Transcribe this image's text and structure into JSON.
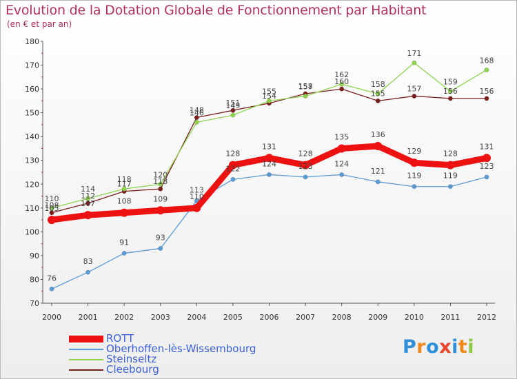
{
  "title": "Evolution de la Dotation Globale de Fonctionnement par Habitant",
  "subtitle": "(en € et par an)",
  "logo": {
    "text": "Proxiti",
    "colors": [
      "#2f8fd8",
      "#f08a1c",
      "#2f8fd8",
      "#e8452b",
      "#2f8fd8",
      "#f08a1c",
      "#8dc63f"
    ]
  },
  "chart_data": {
    "type": "line",
    "title": "Evolution de la Dotation Globale de Fonctionnement par Habitant",
    "ylabel": "(en € et par an)",
    "xlabel": "",
    "ylim": [
      70,
      180
    ],
    "yticks": [
      70,
      80,
      90,
      100,
      110,
      120,
      130,
      140,
      150,
      160,
      170,
      180
    ],
    "x": [
      2000,
      2001,
      2002,
      2003,
      2004,
      2005,
      2006,
      2007,
      2008,
      2009,
      2010,
      2011,
      2012
    ],
    "grid": false,
    "legend_position": "bottom-left",
    "series": [
      {
        "name": "ROTT",
        "color": "#ee1111",
        "values": [
          105,
          107,
          108,
          109,
          110,
          128,
          131,
          128,
          135,
          136,
          129,
          128,
          131
        ]
      },
      {
        "name": "Oberhoffen-lès-Wissembourg",
        "color": "#5b9bd5",
        "values": [
          76,
          83,
          91,
          93,
          113,
          122,
          124,
          123,
          124,
          121,
          119,
          119,
          123
        ]
      },
      {
        "name": "Steinseltz",
        "color": "#8ed34e",
        "values": [
          110,
          114,
          118,
          120,
          146,
          149,
          155,
          157,
          162,
          158,
          171,
          159,
          168
        ]
      },
      {
        "name": "Cleebourg",
        "color": "#7a1e1e",
        "values": [
          108,
          112,
          117,
          118,
          148,
          151,
          154,
          158,
          160,
          155,
          157,
          156,
          156
        ]
      }
    ]
  }
}
